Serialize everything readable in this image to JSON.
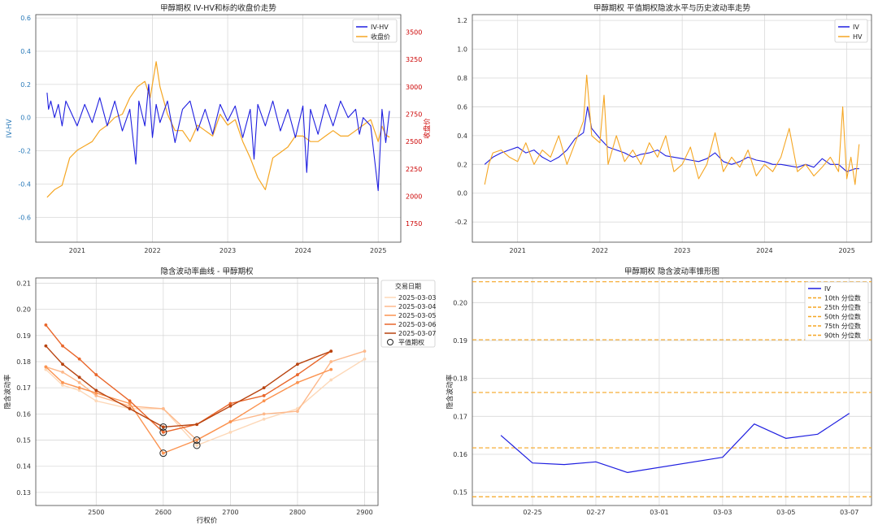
{
  "chart_data": [
    {
      "type": "line",
      "title": "甲醇期权 IV-HV和标的收盘价走势",
      "ylabel": "IV-HV",
      "ylabel_right": "收盘价",
      "xticks": [
        "2021",
        "2022",
        "2023",
        "2024",
        "2025"
      ],
      "yticks": [
        "-0.6",
        "-0.4",
        "-0.2",
        "0.0",
        "0.2",
        "0.4",
        "0.6"
      ],
      "yticks_right": [
        "1750",
        "2000",
        "2250",
        "2500",
        "2750",
        "3000",
        "3250",
        "3500"
      ],
      "ylim": [
        -0.75,
        0.62
      ],
      "ylim_right": [
        1580,
        3660
      ],
      "legend": [
        "IV-HV",
        "收盘价"
      ],
      "legend_position": "top-right",
      "colors": {
        "iv_hv": "#1f1fe0",
        "close": "#f5a623",
        "right_axis": "#cc0000"
      },
      "series": [
        {
          "name": "IV-HV",
          "axis": "left",
          "x": [
            2020.6,
            2020.62,
            2020.65,
            2020.7,
            2020.75,
            2020.8,
            2020.85,
            2020.9,
            2021.0,
            2021.1,
            2021.2,
            2021.3,
            2021.4,
            2021.5,
            2021.6,
            2021.7,
            2021.78,
            2021.82,
            2021.9,
            2021.95,
            2022.0,
            2022.05,
            2022.1,
            2022.2,
            2022.3,
            2022.4,
            2022.5,
            2022.6,
            2022.7,
            2022.8,
            2022.9,
            2023.0,
            2023.1,
            2023.2,
            2023.3,
            2023.35,
            2023.4,
            2023.5,
            2023.6,
            2023.7,
            2023.8,
            2023.9,
            2024.0,
            2024.05,
            2024.1,
            2024.2,
            2024.3,
            2024.4,
            2024.5,
            2024.6,
            2024.7,
            2024.75,
            2024.8,
            2024.9,
            2025.0,
            2025.05,
            2025.1,
            2025.15
          ],
          "y": [
            0.15,
            0.05,
            0.1,
            0.0,
            0.08,
            -0.05,
            0.1,
            0.05,
            -0.05,
            0.08,
            -0.03,
            0.12,
            -0.05,
            0.1,
            -0.08,
            0.05,
            -0.28,
            0.1,
            -0.05,
            0.2,
            -0.12,
            0.08,
            -0.03,
            0.1,
            -0.15,
            0.05,
            0.1,
            -0.08,
            0.05,
            -0.1,
            0.08,
            -0.02,
            0.07,
            -0.12,
            0.05,
            -0.25,
            0.08,
            -0.05,
            0.1,
            -0.08,
            0.05,
            -0.12,
            0.07,
            -0.33,
            0.05,
            -0.1,
            0.08,
            -0.05,
            0.1,
            0.0,
            0.05,
            -0.1,
            0.0,
            -0.05,
            -0.44,
            0.05,
            -0.15,
            0.04
          ]
        },
        {
          "name": "收盘价",
          "axis": "right",
          "x": [
            2020.6,
            2020.7,
            2020.8,
            2020.9,
            2021.0,
            2021.1,
            2021.2,
            2021.3,
            2021.4,
            2021.5,
            2021.6,
            2021.7,
            2021.8,
            2021.9,
            2021.97,
            2022.05,
            2022.1,
            2022.2,
            2022.3,
            2022.4,
            2022.5,
            2022.6,
            2022.7,
            2022.8,
            2022.9,
            2023.0,
            2023.1,
            2023.2,
            2023.3,
            2023.4,
            2023.5,
            2023.6,
            2023.7,
            2023.8,
            2023.9,
            2024.0,
            2024.1,
            2024.2,
            2024.3,
            2024.4,
            2024.5,
            2024.6,
            2024.7,
            2024.8,
            2024.9,
            2025.0,
            2025.05,
            2025.1,
            2025.15
          ],
          "y": [
            1990,
            2060,
            2100,
            2350,
            2420,
            2460,
            2500,
            2600,
            2650,
            2720,
            2750,
            2900,
            3000,
            3050,
            2900,
            3230,
            3000,
            2750,
            2600,
            2600,
            2500,
            2650,
            2600,
            2550,
            2750,
            2650,
            2700,
            2500,
            2350,
            2170,
            2060,
            2350,
            2400,
            2450,
            2550,
            2550,
            2500,
            2500,
            2550,
            2600,
            2550,
            2550,
            2600,
            2650,
            2700,
            2500,
            2640,
            2560,
            2540
          ]
        }
      ]
    },
    {
      "type": "line",
      "title": "甲醇期权 平值期权隐波水平与历史波动率走势",
      "xticks": [
        "2021",
        "2022",
        "2023",
        "2024",
        "2025"
      ],
      "yticks": [
        "-0.2",
        "0.0",
        "0.2",
        "0.4",
        "0.6",
        "0.8",
        "1.0",
        "1.2"
      ],
      "ylim": [
        -0.34,
        1.24
      ],
      "legend": [
        "IV",
        "HV"
      ],
      "legend_position": "top-right",
      "colors": {
        "iv": "#1f1fe0",
        "hv": "#f5a623"
      },
      "series": [
        {
          "name": "IV",
          "x": [
            2020.6,
            2020.7,
            2020.8,
            2020.9,
            2021.0,
            2021.1,
            2021.2,
            2021.3,
            2021.4,
            2021.5,
            2021.6,
            2021.7,
            2021.8,
            2021.85,
            2021.9,
            2022.0,
            2022.1,
            2022.2,
            2022.3,
            2022.4,
            2022.5,
            2022.6,
            2022.7,
            2022.8,
            2022.9,
            2023.0,
            2023.1,
            2023.2,
            2023.3,
            2023.4,
            2023.5,
            2023.6,
            2023.7,
            2023.8,
            2023.9,
            2024.0,
            2024.1,
            2024.2,
            2024.3,
            2024.4,
            2024.5,
            2024.6,
            2024.7,
            2024.8,
            2024.9,
            2025.0,
            2025.1,
            2025.15
          ],
          "y": [
            0.2,
            0.25,
            0.28,
            0.3,
            0.32,
            0.28,
            0.3,
            0.25,
            0.22,
            0.25,
            0.3,
            0.38,
            0.42,
            0.6,
            0.45,
            0.38,
            0.32,
            0.3,
            0.28,
            0.25,
            0.27,
            0.28,
            0.3,
            0.26,
            0.25,
            0.24,
            0.23,
            0.22,
            0.24,
            0.28,
            0.22,
            0.2,
            0.22,
            0.25,
            0.23,
            0.22,
            0.2,
            0.2,
            0.19,
            0.18,
            0.2,
            0.18,
            0.24,
            0.2,
            0.2,
            0.15,
            0.17,
            0.17
          ]
        },
        {
          "name": "HV",
          "x": [
            2020.6,
            2020.65,
            2020.7,
            2020.8,
            2020.9,
            2021.0,
            2021.1,
            2021.2,
            2021.3,
            2021.4,
            2021.5,
            2021.6,
            2021.7,
            2021.8,
            2021.84,
            2021.9,
            2022.0,
            2022.05,
            2022.1,
            2022.2,
            2022.3,
            2022.4,
            2022.5,
            2022.6,
            2022.7,
            2022.8,
            2022.9,
            2023.0,
            2023.1,
            2023.2,
            2023.3,
            2023.4,
            2023.5,
            2023.6,
            2023.7,
            2023.8,
            2023.9,
            2024.0,
            2024.1,
            2024.2,
            2024.3,
            2024.4,
            2024.5,
            2024.6,
            2024.7,
            2024.8,
            2024.9,
            2024.95,
            2025.0,
            2025.05,
            2025.1,
            2025.15
          ],
          "y": [
            0.06,
            0.2,
            0.28,
            0.3,
            0.25,
            0.22,
            0.35,
            0.2,
            0.3,
            0.25,
            0.4,
            0.2,
            0.35,
            0.5,
            0.82,
            0.4,
            0.35,
            0.68,
            0.2,
            0.4,
            0.22,
            0.3,
            0.2,
            0.35,
            0.25,
            0.4,
            0.15,
            0.2,
            0.32,
            0.1,
            0.2,
            0.42,
            0.15,
            0.25,
            0.18,
            0.3,
            0.12,
            0.2,
            0.15,
            0.25,
            0.45,
            0.15,
            0.2,
            0.12,
            0.18,
            0.25,
            0.15,
            0.6,
            0.1,
            0.25,
            0.06,
            0.34
          ]
        }
      ]
    },
    {
      "type": "line",
      "title": "隐含波动率曲线 - 甲醇期权",
      "xlabel": "行权价",
      "ylabel": "隐含波动率",
      "xticks": [
        "2500",
        "2600",
        "2700",
        "2800",
        "2900"
      ],
      "yticks": [
        "0.13",
        "0.14",
        "0.15",
        "0.16",
        "0.17",
        "0.18",
        "0.19",
        "0.20",
        "0.21"
      ],
      "xlim": [
        2410,
        2920
      ],
      "ylim": [
        0.125,
        0.212
      ],
      "legend_title": "交易日期",
      "legend": [
        "2025-03-03",
        "2025-03-04",
        "2025-03-05",
        "2025-03-06",
        "2025-03-07",
        "平值期权"
      ],
      "legend_position": "top-right",
      "series": [
        {
          "name": "2025-03-03",
          "color": "#fdd8b8",
          "x": [
            2425,
            2450,
            2475,
            2500,
            2550,
            2600,
            2650,
            2700,
            2750,
            2800,
            2850,
            2900
          ],
          "y": [
            0.177,
            0.171,
            0.169,
            0.165,
            0.162,
            0.162,
            0.148,
            0.153,
            0.158,
            0.162,
            0.173,
            0.181
          ],
          "atm": [
            2650,
            0.148
          ]
        },
        {
          "name": "2025-03-04",
          "color": "#fdb88a",
          "x": [
            2425,
            2450,
            2475,
            2500,
            2550,
            2600,
            2650,
            2700,
            2750,
            2800,
            2850,
            2900
          ],
          "y": [
            0.178,
            0.176,
            0.172,
            0.167,
            0.163,
            0.162,
            0.15,
            0.157,
            0.16,
            0.161,
            0.18,
            0.184
          ],
          "atm": [
            2650,
            0.15
          ]
        },
        {
          "name": "2025-03-05",
          "color": "#fb9350",
          "x": [
            2425,
            2450,
            2475,
            2500,
            2550,
            2600,
            2650,
            2700,
            2750,
            2800,
            2850
          ],
          "y": [
            0.178,
            0.172,
            0.17,
            0.168,
            0.164,
            0.145,
            0.15,
            0.157,
            0.165,
            0.172,
            0.177
          ],
          "atm": [
            2600,
            0.145
          ]
        },
        {
          "name": "2025-03-06",
          "color": "#e9662a",
          "x": [
            2425,
            2450,
            2475,
            2500,
            2550,
            2600,
            2650,
            2700,
            2750,
            2800,
            2850
          ],
          "y": [
            0.194,
            0.186,
            0.181,
            0.175,
            0.165,
            0.153,
            0.156,
            0.164,
            0.167,
            0.175,
            0.184
          ],
          "atm": [
            2600,
            0.153
          ]
        },
        {
          "name": "2025-03-07",
          "color": "#b8430f",
          "x": [
            2425,
            2450,
            2475,
            2500,
            2550,
            2600,
            2650,
            2700,
            2750,
            2800,
            2850
          ],
          "y": [
            0.186,
            0.179,
            0.174,
            0.169,
            0.162,
            0.155,
            0.156,
            0.163,
            0.17,
            0.179,
            0.184
          ],
          "atm": [
            2600,
            0.155
          ]
        }
      ]
    },
    {
      "type": "line",
      "title": "甲醇期权 隐含波动率锥形图",
      "ylabel": "隐含波动率",
      "xticks": [
        "02-25",
        "02-27",
        "03-01",
        "03-03",
        "03-05",
        "03-07"
      ],
      "yticks": [
        "0.15",
        "0.16",
        "0.17",
        "0.18",
        "0.19",
        "0.20"
      ],
      "ylim": [
        0.1465,
        0.2065
      ],
      "legend": [
        "IV",
        "10th 分位数",
        "25th 分位数",
        "50th 分位数",
        "75th 分位数",
        "90th 分位数"
      ],
      "legend_position": "top-right",
      "colors": {
        "iv": "#1f1fe0",
        "percentile": "#f5a623"
      },
      "x": [
        "02-24",
        "02-25",
        "02-26",
        "02-27",
        "02-28",
        "03-03",
        "03-04",
        "03-05",
        "03-06",
        "03-07"
      ],
      "xpos": [
        -0.5,
        0,
        0.5,
        1,
        1.5,
        3,
        3.5,
        4,
        4.5,
        5
      ],
      "iv": [
        0.165,
        0.1577,
        0.1573,
        0.158,
        0.1552,
        0.1592,
        0.168,
        0.1642,
        0.1653,
        0.1708
      ],
      "percentiles": [
        {
          "name": "10th 分位数",
          "value": 0.1488
        },
        {
          "name": "25th 分位数",
          "value": 0.1617
        },
        {
          "name": "50th 分位数",
          "value": 0.1763
        },
        {
          "name": "75th 分位数",
          "value": 0.1902
        },
        {
          "name": "90th 分位数",
          "value": 0.2055
        }
      ]
    }
  ]
}
